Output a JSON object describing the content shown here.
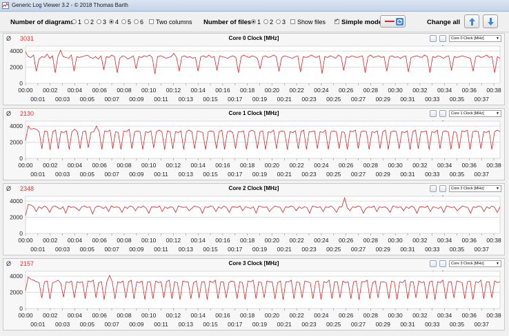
{
  "window": {
    "title": "Generic Log Viewer 3.2 - © 2018 Thomas Barth"
  },
  "toolbar": {
    "diagrams_label": "Number of diagrams",
    "diagram_options": [
      "1",
      "2",
      "3",
      "4",
      "5",
      "6"
    ],
    "diagram_selected": "4",
    "two_columns_label": "Two columns",
    "files_label": "Number of files",
    "file_options": [
      "1",
      "2",
      "3"
    ],
    "file_selected": "1",
    "show_files_label": "Show files",
    "simple_mode_label": "Simple mode",
    "simple_mode_checked": true,
    "change_all_label": "Change all",
    "line_color": "#e02020"
  },
  "accent_color": "#e03030",
  "panels": [
    {
      "title": "Core 0 Clock [MHz]",
      "current": "3031",
      "dropdown": "Core 0 Clock [MHz]"
    },
    {
      "title": "Core 1 Clock [MHz]",
      "current": "2130",
      "dropdown": "Core 1 Clock [MHz]"
    },
    {
      "title": "Core 2 Clock [MHz]",
      "current": "2348",
      "dropdown": "Core 2 Clock [MHz]"
    },
    {
      "title": "Core 3 Clock [MHz]",
      "current": "2157",
      "dropdown": "Core 3 Clock [MHz]"
    }
  ],
  "phi_symbol": "Ø",
  "chart_data": [
    {
      "type": "line",
      "title": "Core 0 Clock [MHz]",
      "ylim": [
        0,
        4600
      ],
      "yticks": [
        "4000",
        "2000",
        "0"
      ],
      "xticks_top": [
        "00:00",
        "00:02",
        "00:04",
        "00:06",
        "00:08",
        "00:10",
        "00:12",
        "00:14",
        "00:16",
        "00:18",
        "00:20",
        "00:22",
        "00:24",
        "00:26",
        "00:28",
        "00:30",
        "00:32",
        "00:34",
        "00:36",
        "00:38"
      ],
      "xticks_bottom": [
        "00:01",
        "00:03",
        "00:05",
        "00:07",
        "00:09",
        "00:11",
        "00:13",
        "00:15",
        "00:17",
        "00:19",
        "00:21",
        "00:23",
        "00:25",
        "00:27",
        "00:29",
        "00:31",
        "00:33",
        "00:35",
        "00:37"
      ],
      "series": [
        {
          "values": [
            3900,
            3300,
            3200,
            3500,
            1500,
            3000,
            3300,
            3200,
            3600,
            3100,
            3400,
            1300,
            3300,
            4100,
            3300,
            3200,
            3100,
            3500,
            1500,
            3300,
            3200,
            3300,
            3400,
            3500,
            3200,
            3100,
            3300,
            3000,
            3400,
            1700,
            3300,
            3200,
            3500,
            3300,
            1300,
            3100,
            3400,
            3300,
            3000,
            3200,
            3400,
            1800,
            3300,
            3200,
            3400,
            3300,
            3500,
            3200,
            1200,
            3300,
            3400,
            3300,
            3100,
            3200,
            3300,
            3700,
            3200,
            1500,
            3300,
            3400,
            3200,
            3300,
            3100,
            3200,
            1500,
            3300,
            3400,
            3200,
            3500,
            3200,
            3300,
            1600,
            3400,
            3300,
            3200,
            3100,
            3300,
            3400,
            3200,
            1300,
            3300,
            3500,
            3300,
            3200,
            3400,
            3300,
            3100,
            1800,
            3300,
            3400,
            3200,
            3300,
            3500,
            3300,
            1500,
            3200,
            3400,
            3300,
            3200,
            3100,
            3300,
            3400,
            1400,
            3300,
            3200,
            3300,
            3500,
            3300,
            3200,
            3400,
            1200,
            3300,
            3200,
            3400,
            3300,
            3100,
            3500,
            3300,
            1600,
            3300,
            3200,
            3400,
            3300,
            3200,
            3300,
            3400,
            1300,
            3300,
            3500,
            3200,
            3300,
            3400,
            3200,
            3300,
            1500,
            3300,
            3400,
            3200,
            3300,
            3100,
            3300,
            3400,
            1400,
            3200,
            3300,
            3400,
            3300,
            3200,
            3500,
            3300,
            1300,
            3300,
            3200,
            3400,
            3300,
            3100,
            3300,
            3400,
            1600,
            3300,
            3200,
            3300,
            3400,
            3300,
            3200,
            3100,
            1500,
            3300,
            3400,
            3200,
            3300,
            3500,
            3200,
            3300,
            1300,
            3300,
            3100
          ]
        }
      ]
    },
    {
      "type": "line",
      "title": "Core 1 Clock [MHz]",
      "ylim": [
        0,
        4600
      ],
      "yticks": [
        "4000",
        "2000",
        "0"
      ],
      "xticks_top": [
        "00:00",
        "00:02",
        "00:04",
        "00:06",
        "00:08",
        "00:10",
        "00:12",
        "00:14",
        "00:16",
        "00:18",
        "00:20",
        "00:22",
        "00:24",
        "00:26",
        "00:28",
        "00:30",
        "00:32",
        "00:34",
        "00:36",
        "00:38"
      ],
      "xticks_bottom": [
        "00:01",
        "00:03",
        "00:05",
        "00:07",
        "00:09",
        "00:11",
        "00:13",
        "00:15",
        "00:17",
        "00:19",
        "00:21",
        "00:23",
        "00:25",
        "00:27",
        "00:29",
        "00:31",
        "00:33",
        "00:35",
        "00:37"
      ],
      "series": [
        {
          "values": [
            2200,
            4000,
            3600,
            3700,
            3600,
            3300,
            1200,
            3400,
            3300,
            1100,
            3300,
            3500,
            1200,
            3300,
            3200,
            3400,
            1100,
            3300,
            3600,
            3300,
            1200,
            3300,
            3400,
            1300,
            3200,
            3300,
            4000,
            3300,
            1100,
            3400,
            3300,
            3500,
            1200,
            3300,
            3200,
            1100,
            3400,
            3300,
            3600,
            1200,
            3300,
            3400,
            3300,
            1100,
            3300,
            3200,
            3400,
            1300,
            3300,
            3500,
            3300,
            1100,
            3400,
            3300,
            1200,
            3300,
            3200,
            3400,
            1100,
            3300,
            3500,
            3300,
            1200,
            3400,
            3300,
            3200,
            1100,
            3300,
            3400,
            3300,
            1200,
            3300,
            3500,
            1100,
            3300,
            3400,
            3200,
            1200,
            3300,
            3300,
            3400,
            1100,
            3300,
            3500,
            3300,
            1200,
            3300,
            3400,
            1100,
            3300,
            3200,
            3500,
            1200,
            3300,
            3400,
            3300,
            1100,
            3300,
            3200,
            3400,
            1200,
            3300,
            3500,
            1100,
            3300,
            3300,
            3400,
            1200,
            3300,
            3200,
            3500,
            1100,
            3300,
            3400,
            3300,
            1200,
            3300,
            3200,
            1100,
            3400,
            3300,
            3500,
            1200,
            3300,
            3400,
            3300,
            1100,
            3300,
            3200,
            3400,
            1200,
            3300,
            3500,
            1100,
            3300,
            3400,
            3300,
            1200,
            3300,
            3200,
            3400,
            1100,
            3300,
            3500,
            1200,
            3300,
            3300,
            3400,
            1100,
            3300,
            3200,
            3500,
            1200,
            3300,
            3400,
            3300,
            1100,
            3300,
            3200,
            1200,
            3400,
            3300,
            3500,
            1100,
            3300,
            3400,
            3300,
            1200,
            3300,
            3200,
            3400,
            1100,
            3300,
            3500,
            3300
          ]
        }
      ]
    },
    {
      "type": "line",
      "title": "Core 2 Clock [MHz]",
      "ylim": [
        0,
        4600
      ],
      "yticks": [
        "4000",
        "2000",
        "0"
      ],
      "xticks_top": [
        "00:00",
        "00:02",
        "00:04",
        "00:06",
        "00:08",
        "00:10",
        "00:12",
        "00:14",
        "00:16",
        "00:18",
        "00:20",
        "00:22",
        "00:24",
        "00:26",
        "00:28",
        "00:30",
        "00:32",
        "00:34",
        "00:36",
        "00:38"
      ],
      "xticks_bottom": [
        "00:01",
        "00:03",
        "00:05",
        "00:07",
        "00:09",
        "00:11",
        "00:13",
        "00:15",
        "00:17",
        "00:19",
        "00:21",
        "00:23",
        "00:25",
        "00:27",
        "00:29",
        "00:31",
        "00:33",
        "00:35",
        "00:37"
      ],
      "series": [
        {
          "values": [
            2200,
            3600,
            3500,
            3300,
            2700,
            3300,
            3100,
            3400,
            3200,
            2600,
            3300,
            3400,
            3200,
            3000,
            3300,
            2500,
            3400,
            3200,
            3300,
            3100,
            2800,
            3300,
            3400,
            3200,
            3300,
            2400,
            3200,
            3400,
            3300,
            3100,
            3300,
            2700,
            3400,
            3200,
            3300,
            3200,
            2600,
            3300,
            3100,
            3400,
            3300,
            2800,
            3300,
            3200,
            3400,
            3100,
            2500,
            3300,
            3300,
            3200,
            3400,
            2700,
            3300,
            3100,
            3300,
            3200,
            2600,
            3400,
            3300,
            3200,
            3300,
            2800,
            3100,
            3400,
            3300,
            3200,
            2500,
            3300,
            3200,
            3400,
            3300,
            2700,
            3300,
            3100,
            3400,
            3200,
            2600,
            3300,
            3300,
            3200,
            3400,
            2800,
            3300,
            3200,
            3100,
            3300,
            2500,
            3400,
            3300,
            3200,
            3300,
            2700,
            3100,
            3400,
            3300,
            3200,
            2600,
            3300,
            3200,
            3400,
            3300,
            2800,
            3300,
            3100,
            3300,
            3200,
            2500,
            3400,
            3300,
            3200,
            3300,
            2700,
            3300,
            3200,
            3400,
            3100,
            2600,
            3300,
            3300,
            4400,
            3200,
            2800,
            3300,
            3200,
            3400,
            3300,
            2500,
            3100,
            3300,
            3200,
            3400,
            2700,
            3300,
            3200,
            3300,
            3100,
            2600,
            3400,
            3300,
            3200,
            3300,
            2800,
            3300,
            3100,
            3400,
            3200,
            2500,
            3300,
            3300,
            3200,
            3400,
            2700,
            3300,
            3200,
            3100,
            3300,
            2600,
            3400,
            3300,
            3200,
            3300,
            2800,
            3100,
            3400,
            3300,
            3200,
            2500,
            3300,
            3200,
            3400,
            3300,
            2700,
            3300,
            3100,
            3400,
            3200,
            2600,
            3300
          ]
        }
      ]
    },
    {
      "type": "line",
      "title": "Core 3 Clock [MHz]",
      "ylim": [
        0,
        4600
      ],
      "yticks": [
        "4000",
        "2000",
        "0"
      ],
      "xticks_top": [
        "00:00",
        "00:02",
        "00:04",
        "00:06",
        "00:08",
        "00:10",
        "00:12",
        "00:14",
        "00:16",
        "00:18",
        "00:20",
        "00:22",
        "00:24",
        "00:26",
        "00:28",
        "00:30",
        "00:32",
        "00:34",
        "00:36",
        "00:38"
      ],
      "xticks_bottom": [
        "00:01",
        "00:03",
        "00:05",
        "00:07",
        "00:09",
        "00:11",
        "00:13",
        "00:15",
        "00:17",
        "00:19",
        "00:21",
        "00:23",
        "00:25",
        "00:27",
        "00:29",
        "00:31",
        "00:33",
        "00:35",
        "00:37"
      ],
      "series": [
        {
          "values": [
            2200,
            3900,
            3600,
            3500,
            3300,
            3200,
            1300,
            3300,
            3400,
            1200,
            3200,
            3300,
            3500,
            3100,
            1400,
            3300,
            3200,
            3400,
            1300,
            3300,
            3200,
            3300,
            1200,
            3400,
            3300,
            3500,
            1300,
            3200,
            3300,
            1100,
            3300,
            4100,
            3300,
            1200,
            3300,
            3200,
            3400,
            1300,
            3300,
            3500,
            1200,
            3300,
            3200,
            3400,
            1100,
            3300,
            3300,
            1200,
            3400,
            3200,
            3300,
            1300,
            3300,
            3500,
            1200,
            3300,
            3200,
            1100,
            3400,
            3300,
            3300,
            1200,
            3200,
            3400,
            1300,
            3300,
            3300,
            1100,
            3400,
            3200,
            3500,
            1200,
            3300,
            3300,
            1300,
            3200,
            3400,
            3300,
            1200,
            3300,
            3200,
            1100,
            3400,
            3300,
            3500,
            1200,
            3300,
            3200,
            1300,
            3400,
            3300,
            3300,
            1200,
            3200,
            3400,
            1100,
            3300,
            3300,
            3500,
            1200,
            3300,
            3200,
            1300,
            3400,
            3300,
            3200,
            1200,
            3300,
            3400,
            1100,
            3300,
            3200,
            3500,
            1200,
            3300,
            3300,
            1300,
            3400,
            3200,
            3300,
            1200,
            3300,
            3400,
            1100,
            3300,
            3300,
            3500,
            1200,
            3200,
            3400,
            1300,
            3300,
            3300,
            3200,
            1200,
            3400,
            3300,
            1100,
            3300,
            3200,
            3500,
            1200,
            3300,
            3300,
            1300,
            3400,
            3200,
            3300,
            1200,
            3300,
            3400,
            1100,
            3300,
            3200,
            3500,
            1200,
            3300,
            3300,
            1300,
            3400,
            3300,
            3200,
            1200,
            3300,
            3400,
            1100,
            3300,
            3200,
            3500,
            1200,
            3300,
            3300,
            1300,
            3400,
            3200,
            3300
          ]
        }
      ]
    }
  ]
}
